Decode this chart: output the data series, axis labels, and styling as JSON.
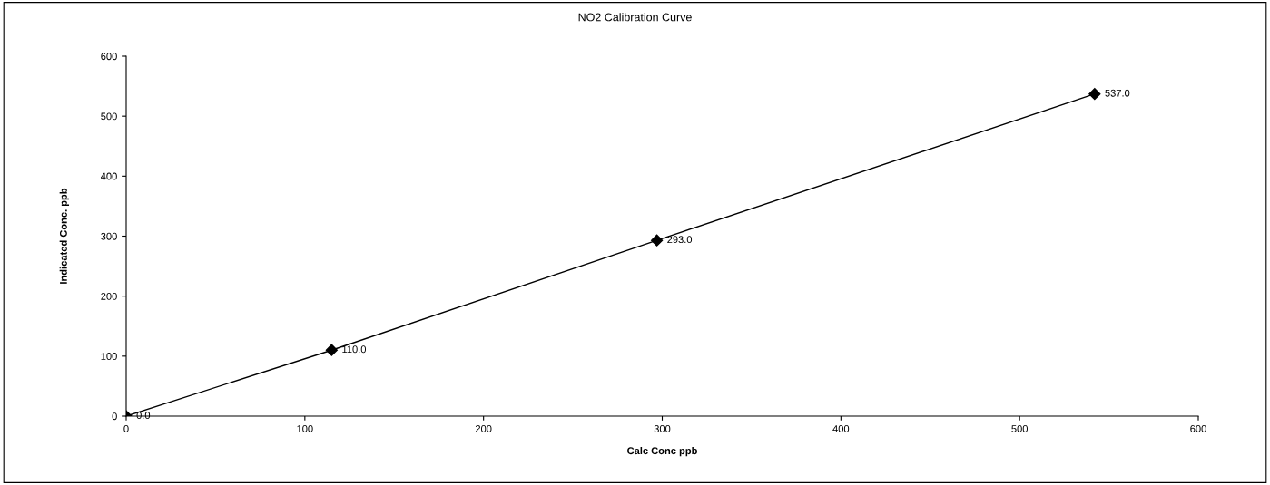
{
  "chart_data": {
    "type": "line",
    "title": "NO2 Calibration Curve",
    "xlabel": "Calc Conc ppb",
    "ylabel": "Indicated Conc. ppb",
    "x": [
      0,
      115,
      297,
      542
    ],
    "series": [
      {
        "color": "#000000",
        "values": [
          0,
          110,
          293,
          537
        ],
        "value_labels": [
          "0.0",
          "110.0",
          "293.0",
          "537.0"
        ]
      }
    ],
    "xlim": [
      0,
      600
    ],
    "xticks": [
      0,
      100,
      200,
      300,
      400,
      500,
      600
    ],
    "ylim": [
      0,
      600
    ],
    "yticks": [
      0,
      100,
      200,
      300,
      400,
      500,
      600
    ],
    "marker": "diamond",
    "line_style": "solid",
    "grid": false,
    "legend": false
  }
}
